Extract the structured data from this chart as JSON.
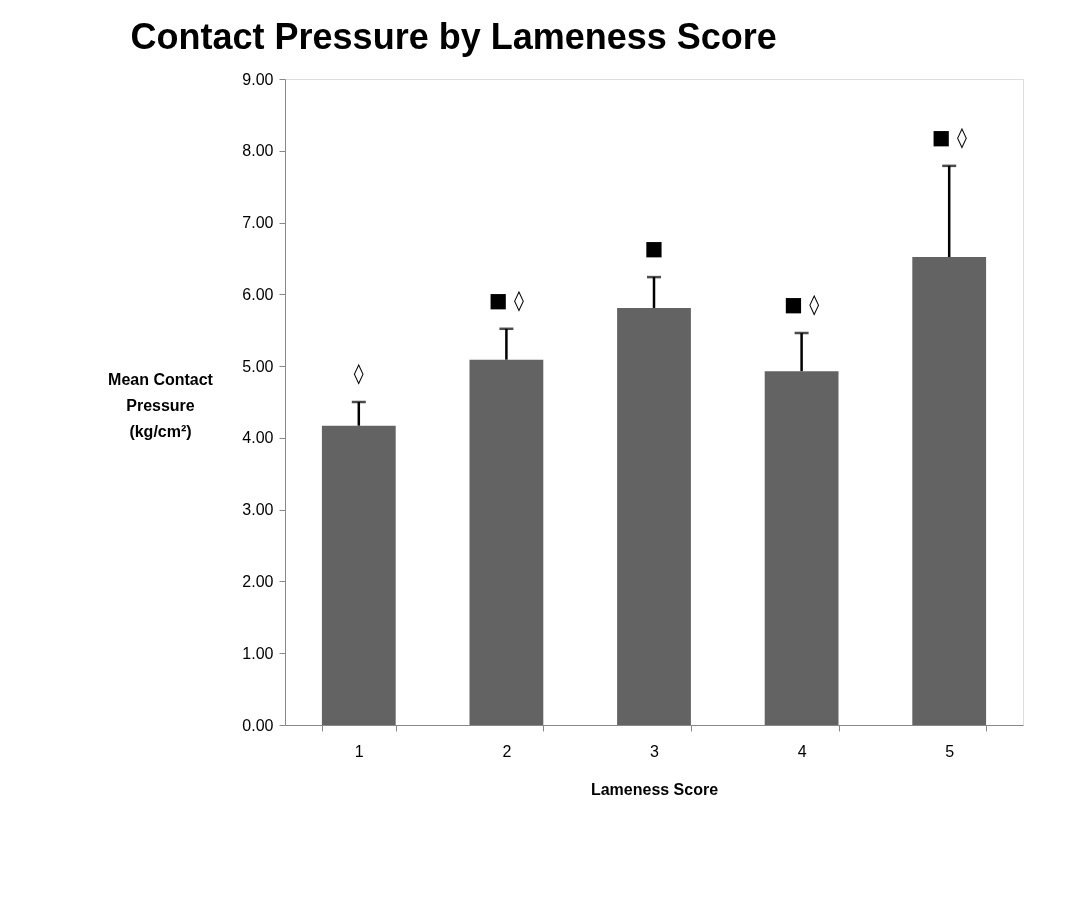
{
  "chart_data": {
    "type": "bar",
    "title": "Contact Pressure by Lameness Score",
    "xlabel": "Lameness Score",
    "ylabel": "Mean Contact\nPressure\n(kg/cm²)",
    "categories": [
      "1",
      "2",
      "3",
      "4",
      "5"
    ],
    "values": [
      4.17,
      5.09,
      5.81,
      4.93,
      6.52
    ],
    "errors": [
      [
        4.17,
        4.5
      ],
      [
        5.09,
        5.52
      ],
      [
        5.81,
        6.24
      ],
      [
        4.93,
        5.46
      ],
      [
        6.52,
        7.79
      ]
    ],
    "color": "#636363",
    "ylim": [
      0,
      9
    ],
    "yticks": [
      {
        "value": 0,
        "label": "0.00"
      },
      {
        "value": 1,
        "label": "1.00"
      },
      {
        "value": 2,
        "label": "2.00"
      },
      {
        "value": 3,
        "label": "3.00"
      },
      {
        "value": 4,
        "label": "4.00"
      },
      {
        "value": 5,
        "label": "5.00"
      },
      {
        "value": 6,
        "label": "6.00"
      },
      {
        "value": 7,
        "label": "7.00"
      },
      {
        "value": 8,
        "label": "8.00"
      },
      {
        "value": 9,
        "label": "9.00"
      }
    ],
    "annotations": [
      "◊",
      "■ ◊",
      "■",
      "■ ◊",
      "■ ◊"
    ],
    "grid": false
  }
}
